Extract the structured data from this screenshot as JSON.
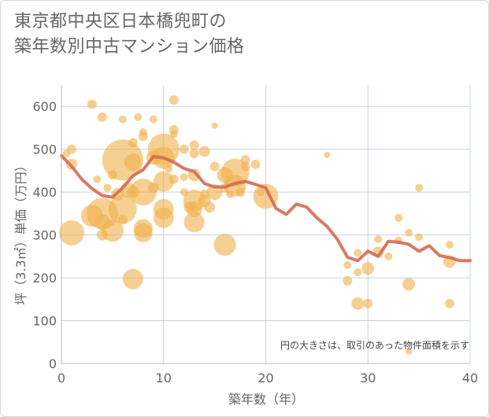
{
  "title_lines": [
    "東京都中央区日本橋兜町の",
    "築年数別中古マンション価格"
  ],
  "chart_data": {
    "type": "scatter",
    "xlabel": "築年数（年）",
    "ylabel": "坪（3.3㎡）単価（万円）",
    "xlim": [
      0,
      40
    ],
    "ylim": [
      0,
      650
    ],
    "xticks": [
      0,
      10,
      20,
      30,
      40
    ],
    "yticks": [
      0,
      100,
      200,
      300,
      400,
      500,
      600
    ],
    "grid": true,
    "note": "円の大きさは、取引のあった物件面積を示す",
    "colors": {
      "bubble": "#f0b14a",
      "line": "#d46a55",
      "grid": "#c5d3e3",
      "axis": "#bbbbbb"
    },
    "bubbles": [
      {
        "x": 0.5,
        "y": 490,
        "s": 5
      },
      {
        "x": 1,
        "y": 500,
        "s": 6
      },
      {
        "x": 1,
        "y": 465,
        "s": 7
      },
      {
        "x": 1,
        "y": 305,
        "s": 16
      },
      {
        "x": 3,
        "y": 605,
        "s": 6
      },
      {
        "x": 3,
        "y": 345,
        "s": 14
      },
      {
        "x": 3.5,
        "y": 430,
        "s": 5
      },
      {
        "x": 4,
        "y": 575,
        "s": 6
      },
      {
        "x": 4,
        "y": 350,
        "s": 20
      },
      {
        "x": 4,
        "y": 330,
        "s": 10
      },
      {
        "x": 4,
        "y": 300,
        "s": 7
      },
      {
        "x": 4.5,
        "y": 410,
        "s": 5
      },
      {
        "x": 5,
        "y": 440,
        "s": 6
      },
      {
        "x": 5,
        "y": 310,
        "s": 14
      },
      {
        "x": 5.5,
        "y": 395,
        "s": 8
      },
      {
        "x": 6,
        "y": 570,
        "s": 5
      },
      {
        "x": 6,
        "y": 475,
        "s": 26
      },
      {
        "x": 6,
        "y": 360,
        "s": 18
      },
      {
        "x": 6,
        "y": 335,
        "s": 6
      },
      {
        "x": 6.5,
        "y": 405,
        "s": 10
      },
      {
        "x": 7,
        "y": 515,
        "s": 6
      },
      {
        "x": 7,
        "y": 470,
        "s": 11
      },
      {
        "x": 7,
        "y": 400,
        "s": 8
      },
      {
        "x": 7,
        "y": 197,
        "s": 13
      },
      {
        "x": 7.5,
        "y": 575,
        "s": 5
      },
      {
        "x": 8,
        "y": 540,
        "s": 5
      },
      {
        "x": 8,
        "y": 530,
        "s": 6
      },
      {
        "x": 8,
        "y": 400,
        "s": 17
      },
      {
        "x": 8,
        "y": 315,
        "s": 12
      },
      {
        "x": 8,
        "y": 305,
        "s": 12
      },
      {
        "x": 9,
        "y": 570,
        "s": 5
      },
      {
        "x": 9,
        "y": 480,
        "s": 9
      },
      {
        "x": 9,
        "y": 410,
        "s": 7
      },
      {
        "x": 10,
        "y": 500,
        "s": 20
      },
      {
        "x": 10,
        "y": 480,
        "s": 14
      },
      {
        "x": 10,
        "y": 425,
        "s": 13
      },
      {
        "x": 10,
        "y": 360,
        "s": 13
      },
      {
        "x": 10,
        "y": 340,
        "s": 13
      },
      {
        "x": 10.5,
        "y": 455,
        "s": 5
      },
      {
        "x": 11,
        "y": 615,
        "s": 6
      },
      {
        "x": 11,
        "y": 545,
        "s": 6
      },
      {
        "x": 11,
        "y": 535,
        "s": 5
      },
      {
        "x": 11,
        "y": 430,
        "s": 6
      },
      {
        "x": 12,
        "y": 500,
        "s": 6
      },
      {
        "x": 12,
        "y": 435,
        "s": 5
      },
      {
        "x": 12,
        "y": 400,
        "s": 5
      },
      {
        "x": 12.5,
        "y": 365,
        "s": 7
      },
      {
        "x": 13,
        "y": 510,
        "s": 6
      },
      {
        "x": 13,
        "y": 490,
        "s": 6
      },
      {
        "x": 13,
        "y": 440,
        "s": 8
      },
      {
        "x": 13,
        "y": 380,
        "s": 14
      },
      {
        "x": 13,
        "y": 360,
        "s": 10
      },
      {
        "x": 13,
        "y": 330,
        "s": 13
      },
      {
        "x": 14,
        "y": 495,
        "s": 7
      },
      {
        "x": 14,
        "y": 395,
        "s": 6
      },
      {
        "x": 14,
        "y": 380,
        "s": 8
      },
      {
        "x": 14.5,
        "y": 365,
        "s": 7
      },
      {
        "x": 15,
        "y": 555,
        "s": 4
      },
      {
        "x": 15,
        "y": 460,
        "s": 6
      },
      {
        "x": 15,
        "y": 400,
        "s": 10
      },
      {
        "x": 16,
        "y": 440,
        "s": 10
      },
      {
        "x": 16,
        "y": 410,
        "s": 6
      },
      {
        "x": 16,
        "y": 277,
        "s": 14
      },
      {
        "x": 16.5,
        "y": 395,
        "s": 5
      },
      {
        "x": 17,
        "y": 445,
        "s": 18
      },
      {
        "x": 17,
        "y": 415,
        "s": 14
      },
      {
        "x": 17.5,
        "y": 400,
        "s": 6
      },
      {
        "x": 18,
        "y": 460,
        "s": 6
      },
      {
        "x": 18,
        "y": 475,
        "s": 6
      },
      {
        "x": 19,
        "y": 465,
        "s": 6
      },
      {
        "x": 19.5,
        "y": 400,
        "s": 5
      },
      {
        "x": 20,
        "y": 390,
        "s": 16
      },
      {
        "x": 26,
        "y": 487,
        "s": 4
      },
      {
        "x": 28,
        "y": 230,
        "s": 5
      },
      {
        "x": 28,
        "y": 193,
        "s": 6
      },
      {
        "x": 29,
        "y": 258,
        "s": 5
      },
      {
        "x": 29,
        "y": 213,
        "s": 5
      },
      {
        "x": 29,
        "y": 140,
        "s": 8
      },
      {
        "x": 30,
        "y": 222,
        "s": 8
      },
      {
        "x": 30,
        "y": 140,
        "s": 6
      },
      {
        "x": 31,
        "y": 290,
        "s": 5
      },
      {
        "x": 31,
        "y": 260,
        "s": 7
      },
      {
        "x": 32,
        "y": 250,
        "s": 5
      },
      {
        "x": 33,
        "y": 340,
        "s": 5
      },
      {
        "x": 33,
        "y": 287,
        "s": 5
      },
      {
        "x": 34,
        "y": 305,
        "s": 5
      },
      {
        "x": 34,
        "y": 185,
        "s": 8
      },
      {
        "x": 34,
        "y": 28,
        "s": 4
      },
      {
        "x": 35,
        "y": 410,
        "s": 5
      },
      {
        "x": 35,
        "y": 295,
        "s": 5
      },
      {
        "x": 38,
        "y": 277,
        "s": 5
      },
      {
        "x": 38,
        "y": 238,
        "s": 8
      },
      {
        "x": 38,
        "y": 140,
        "s": 6
      }
    ],
    "trend": {
      "x": [
        0,
        1,
        2,
        3,
        4,
        5,
        6,
        7,
        8,
        9,
        10,
        11,
        12,
        13,
        14,
        15,
        16,
        17,
        18,
        19,
        20,
        21,
        22,
        23,
        24,
        25,
        26,
        27,
        28,
        29,
        30,
        31,
        32,
        33,
        34,
        35,
        36,
        37,
        38,
        39,
        40
      ],
      "y": [
        485,
        460,
        430,
        408,
        392,
        388,
        410,
        438,
        452,
        483,
        480,
        470,
        455,
        448,
        420,
        412,
        412,
        420,
        425,
        418,
        410,
        362,
        348,
        372,
        365,
        340,
        320,
        290,
        248,
        240,
        262,
        250,
        285,
        283,
        278,
        262,
        275,
        252,
        247,
        240,
        240
      ]
    }
  }
}
